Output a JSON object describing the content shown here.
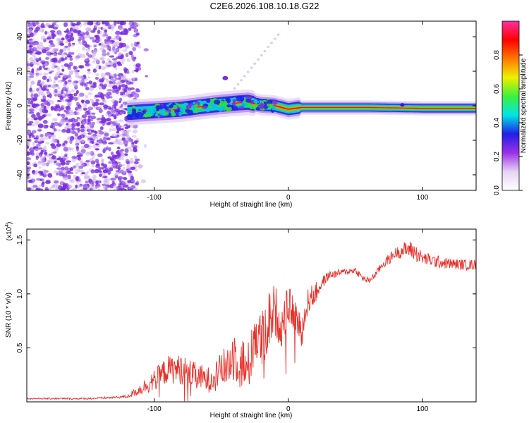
{
  "title": "C2E6.2026.108.10.18.G22",
  "chart_data": [
    {
      "type": "heatmap",
      "xlabel": "Height of straight line (km)",
      "ylabel": "Frequency (Hz)",
      "xlim": [
        -195,
        140
      ],
      "ylim": [
        -49,
        49
      ],
      "xticks": [
        {
          "v": -100,
          "label": "-100"
        },
        {
          "v": 0,
          "label": "0"
        },
        {
          "v": 100,
          "label": "100"
        }
      ],
      "yticks": [
        {
          "v": -40,
          "label": "-40"
        },
        {
          "v": -20,
          "label": "-20"
        },
        {
          "v": 0,
          "label": "0"
        },
        {
          "v": 20,
          "label": "20"
        },
        {
          "v": 40,
          "label": "40"
        }
      ],
      "ridge": [
        {
          "x": -120,
          "f": -4
        },
        {
          "x": -100,
          "f": -3
        },
        {
          "x": -80,
          "f": -2
        },
        {
          "x": -60,
          "f": 0
        },
        {
          "x": -40,
          "f": 1.5
        },
        {
          "x": -30,
          "f": 2
        },
        {
          "x": -20,
          "f": 0.5
        },
        {
          "x": -10,
          "f": 0
        },
        {
          "x": 0,
          "f": -2
        },
        {
          "x": 10,
          "f": -1
        },
        {
          "x": 30,
          "f": -1
        },
        {
          "x": 60,
          "f": -1
        },
        {
          "x": 100,
          "f": -1.5
        },
        {
          "x": 140,
          "f": -1.5
        }
      ],
      "colorbar": {
        "label": "Normalized spectral amplitude",
        "range": [
          0,
          1
        ],
        "ticks": [
          {
            "v": 0,
            "label": "0.0"
          },
          {
            "v": 0.2,
            "label": "0.2"
          },
          {
            "v": 0.4,
            "label": "0.4"
          },
          {
            "v": 0.6,
            "label": "0.6"
          },
          {
            "v": 0.8,
            "label": "0.8"
          }
        ],
        "stops": [
          "#ffffff",
          "#e6d2f5",
          "#9b30e6",
          "#1f1fe6",
          "#00e6e6",
          "#3cf03c",
          "#f0f000",
          "#ff7800",
          "#ff0000",
          "#ff30a0"
        ]
      },
      "colors": {
        "noise": "#7a2ee0",
        "noise_light": "#c9a8f0"
      }
    },
    {
      "type": "line",
      "xlabel": "Height of straight line (km)",
      "ylabel": "SNR (10 * v/v)",
      "multiplier": "(x10",
      "multiplier_exp": "4",
      "multiplier_close": ")",
      "xlim": [
        -195,
        140
      ],
      "ylim": [
        0,
        1.6
      ],
      "xticks": [
        {
          "v": -100,
          "label": "-100"
        },
        {
          "v": 0,
          "label": "0"
        },
        {
          "v": 100,
          "label": "100"
        }
      ],
      "yticks": [
        {
          "v": 0.5,
          "label": "0.5"
        },
        {
          "v": 1.0,
          "label": "1.0"
        },
        {
          "v": 1.5,
          "label": "1.5"
        }
      ],
      "color": "#e8302a",
      "series": [
        {
          "name": "SNR",
          "x": [
            -195,
            -170,
            -150,
            -130,
            -120,
            -110,
            -100,
            -90,
            -80,
            -70,
            -60,
            -50,
            -45,
            -40,
            -30,
            -25,
            -20,
            -15,
            -10,
            -5,
            0,
            5,
            10,
            15,
            20,
            25,
            30,
            40,
            50,
            55,
            60,
            65,
            70,
            75,
            80,
            85,
            90,
            95,
            100,
            110,
            120,
            130,
            140
          ],
          "y": [
            0.03,
            0.03,
            0.03,
            0.04,
            0.05,
            0.12,
            0.2,
            0.3,
            0.3,
            0.25,
            0.2,
            0.3,
            0.35,
            0.45,
            0.3,
            0.65,
            0.55,
            0.75,
            0.85,
            0.7,
            0.9,
            0.8,
            0.65,
            0.95,
            1.0,
            1.1,
            1.17,
            1.2,
            1.22,
            1.15,
            1.12,
            1.18,
            1.27,
            1.32,
            1.38,
            1.4,
            1.42,
            1.38,
            1.33,
            1.3,
            1.28,
            1.27,
            1.27
          ],
          "amp": [
            0.006,
            0.008,
            0.008,
            0.01,
            0.015,
            0.06,
            0.1,
            0.13,
            0.14,
            0.12,
            0.12,
            0.15,
            0.22,
            0.26,
            0.25,
            0.3,
            0.28,
            0.3,
            0.25,
            0.2,
            0.18,
            0.15,
            0.15,
            0.12,
            0.1,
            0.06,
            0.04,
            0.03,
            0.03,
            0.03,
            0.03,
            0.03,
            0.04,
            0.05,
            0.05,
            0.07,
            0.08,
            0.08,
            0.06,
            0.06,
            0.05,
            0.05,
            0.05
          ]
        }
      ]
    }
  ]
}
